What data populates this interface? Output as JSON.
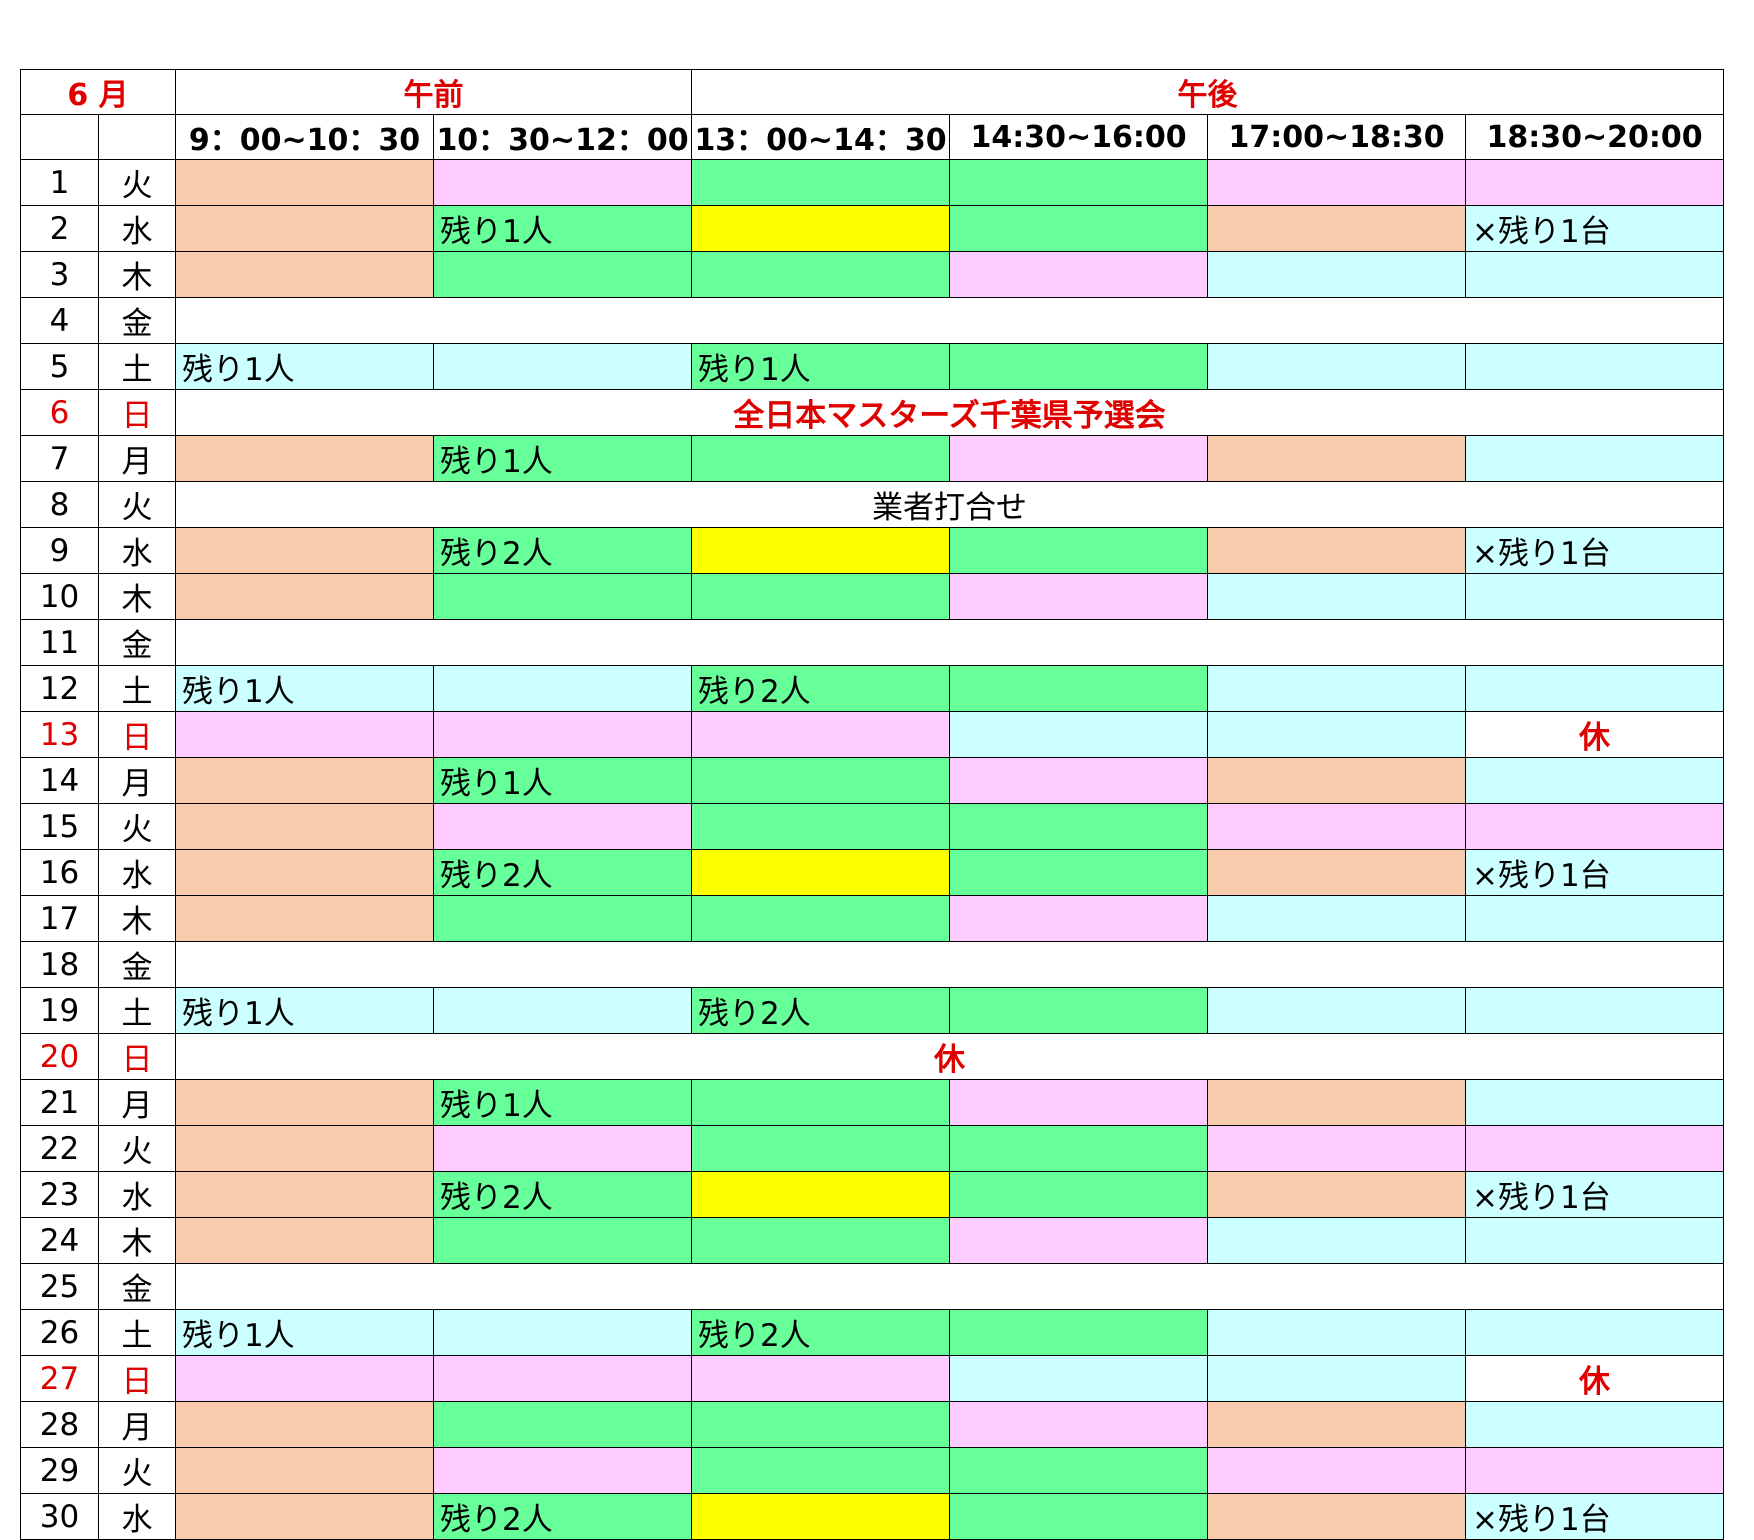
{
  "header": {
    "month": "6 月",
    "am": "午前",
    "pm": "午後",
    "slots": [
      "9：00~10：30",
      "10：30~12：00",
      "13：00~14：30",
      "14:30~16:00",
      "17:00~18:30",
      "18:30~20:00"
    ]
  },
  "colors": {
    "O": "#f8cbad",
    "P": "#ffccff",
    "G": "#66ff99",
    "Y": "#ffff00",
    "C": "#ccffff",
    "W": "#ffffff",
    "accent_red": "#e00000"
  },
  "rows": [
    {
      "d": "1",
      "w": "火",
      "c": [
        "O",
        "P",
        "G",
        "G",
        "P",
        "P"
      ],
      "t": [
        "",
        "",
        "",
        "",
        "",
        ""
      ]
    },
    {
      "d": "2",
      "w": "水",
      "c": [
        "O",
        "G",
        "Y",
        "G",
        "O",
        "C"
      ],
      "t": [
        "",
        "残り1人",
        "",
        "",
        "",
        "×残り1台"
      ]
    },
    {
      "d": "3",
      "w": "木",
      "c": [
        "O",
        "G",
        "G",
        "P",
        "C",
        "C"
      ],
      "t": [
        "",
        "",
        "",
        "",
        "",
        ""
      ]
    },
    {
      "d": "4",
      "w": "金",
      "span": {
        "text": "",
        "bg": "W",
        "red": false,
        "bold": false
      }
    },
    {
      "d": "5",
      "w": "土",
      "c": [
        "C",
        "C",
        "G",
        "G",
        "C",
        "C"
      ],
      "t": [
        "残り1人",
        "",
        "残り1人",
        "",
        "",
        ""
      ]
    },
    {
      "d": "6",
      "w": "日",
      "red": true,
      "span": {
        "text": "全日本マスターズ千葉県予選会",
        "bg": "W",
        "red": true,
        "bold": true
      }
    },
    {
      "d": "7",
      "w": "月",
      "c": [
        "O",
        "G",
        "G",
        "P",
        "O",
        "C"
      ],
      "t": [
        "",
        "残り1人",
        "",
        "",
        "",
        ""
      ]
    },
    {
      "d": "8",
      "w": "火",
      "span": {
        "text": "業者打合せ",
        "bg": "W",
        "red": false,
        "bold": false
      }
    },
    {
      "d": "9",
      "w": "水",
      "c": [
        "O",
        "G",
        "Y",
        "G",
        "O",
        "C"
      ],
      "t": [
        "",
        "残り2人",
        "",
        "",
        "",
        "×残り1台"
      ]
    },
    {
      "d": "10",
      "w": "木",
      "c": [
        "O",
        "G",
        "G",
        "P",
        "C",
        "C"
      ],
      "t": [
        "",
        "",
        "",
        "",
        "",
        ""
      ]
    },
    {
      "d": "11",
      "w": "金",
      "span": {
        "text": "",
        "bg": "W",
        "red": false,
        "bold": false
      }
    },
    {
      "d": "12",
      "w": "土",
      "c": [
        "C",
        "C",
        "G",
        "G",
        "C",
        "C"
      ],
      "t": [
        "残り1人",
        "",
        "残り2人",
        "",
        "",
        ""
      ]
    },
    {
      "d": "13",
      "w": "日",
      "red": true,
      "c": [
        "P",
        "P",
        "P",
        "C",
        "C",
        "W"
      ],
      "t": [
        "",
        "",
        "",
        "",
        "",
        "休"
      ]
    },
    {
      "d": "14",
      "w": "月",
      "c": [
        "O",
        "G",
        "G",
        "P",
        "O",
        "C"
      ],
      "t": [
        "",
        "残り1人",
        "",
        "",
        "",
        ""
      ]
    },
    {
      "d": "15",
      "w": "火",
      "c": [
        "O",
        "P",
        "G",
        "G",
        "P",
        "P"
      ],
      "t": [
        "",
        "",
        "",
        "",
        "",
        ""
      ]
    },
    {
      "d": "16",
      "w": "水",
      "c": [
        "O",
        "G",
        "Y",
        "G",
        "O",
        "C"
      ],
      "t": [
        "",
        "残り2人",
        "",
        "",
        "",
        "×残り1台"
      ]
    },
    {
      "d": "17",
      "w": "木",
      "c": [
        "O",
        "G",
        "G",
        "P",
        "C",
        "C"
      ],
      "t": [
        "",
        "",
        "",
        "",
        "",
        ""
      ]
    },
    {
      "d": "18",
      "w": "金",
      "span": {
        "text": "",
        "bg": "W",
        "red": false,
        "bold": false
      }
    },
    {
      "d": "19",
      "w": "土",
      "c": [
        "C",
        "C",
        "G",
        "G",
        "C",
        "C"
      ],
      "t": [
        "残り1人",
        "",
        "残り2人",
        "",
        "",
        ""
      ]
    },
    {
      "d": "20",
      "w": "日",
      "red": true,
      "span": {
        "text": "休",
        "bg": "W",
        "red": true,
        "bold": true
      }
    },
    {
      "d": "21",
      "w": "月",
      "c": [
        "O",
        "G",
        "G",
        "P",
        "O",
        "C"
      ],
      "t": [
        "",
        "残り1人",
        "",
        "",
        "",
        ""
      ]
    },
    {
      "d": "22",
      "w": "火",
      "c": [
        "O",
        "P",
        "G",
        "G",
        "P",
        "P"
      ],
      "t": [
        "",
        "",
        "",
        "",
        "",
        ""
      ]
    },
    {
      "d": "23",
      "w": "水",
      "c": [
        "O",
        "G",
        "Y",
        "G",
        "O",
        "C"
      ],
      "t": [
        "",
        "残り2人",
        "",
        "",
        "",
        "×残り1台"
      ]
    },
    {
      "d": "24",
      "w": "木",
      "c": [
        "O",
        "G",
        "G",
        "P",
        "C",
        "C"
      ],
      "t": [
        "",
        "",
        "",
        "",
        "",
        ""
      ]
    },
    {
      "d": "25",
      "w": "金",
      "span": {
        "text": "",
        "bg": "W",
        "red": false,
        "bold": false
      }
    },
    {
      "d": "26",
      "w": "土",
      "c": [
        "C",
        "C",
        "G",
        "G",
        "C",
        "C"
      ],
      "t": [
        "残り1人",
        "",
        "残り2人",
        "",
        "",
        ""
      ]
    },
    {
      "d": "27",
      "w": "日",
      "red": true,
      "c": [
        "P",
        "P",
        "P",
        "C",
        "C",
        "W"
      ],
      "t": [
        "",
        "",
        "",
        "",
        "",
        "休"
      ]
    },
    {
      "d": "28",
      "w": "月",
      "c": [
        "O",
        "G",
        "G",
        "P",
        "O",
        "C"
      ],
      "t": [
        "",
        "",
        "",
        "",
        "",
        ""
      ]
    },
    {
      "d": "29",
      "w": "火",
      "c": [
        "O",
        "P",
        "G",
        "G",
        "P",
        "P"
      ],
      "t": [
        "",
        "",
        "",
        "",
        "",
        ""
      ]
    },
    {
      "d": "30",
      "w": "水",
      "c": [
        "O",
        "G",
        "Y",
        "G",
        "O",
        "C"
      ],
      "t": [
        "",
        "残り2人",
        "",
        "",
        "",
        "×残り1台"
      ]
    }
  ]
}
